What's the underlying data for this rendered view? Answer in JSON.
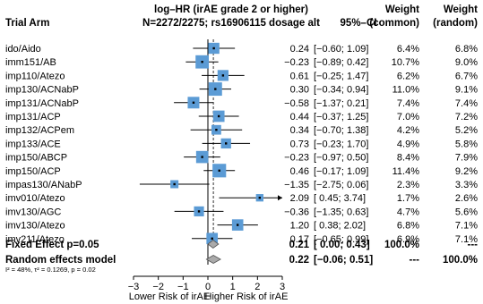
{
  "chart_data": {
    "type": "forest",
    "header": {
      "study_col": "Trial Arm",
      "effect_line1": "log–HR (irAE grade 2 or higher)",
      "effect_line2": "N=2272/2275; rs16906115 dosage alt",
      "ci_col": "95%–CI",
      "weight_common_line1": "Weight",
      "weight_common_line2": "(common)",
      "weight_random_line1": "Weight",
      "weight_random_line2": "(random)"
    },
    "studies": [
      {
        "name": "ido/Aido",
        "est": 0.24,
        "lo": -0.6,
        "hi": 1.09,
        "est_text": "0.24",
        "ci_text": "[−0.60; 1.09]",
        "w_common": "6.4%",
        "w_random": "6.8%",
        "wc": 6.4
      },
      {
        "name": "imm151/AB",
        "est": -0.23,
        "lo": -0.89,
        "hi": 0.42,
        "est_text": "−0.23",
        "ci_text": "[−0.89; 0.42]",
        "w_common": "10.7%",
        "w_random": "9.0%",
        "wc": 10.7
      },
      {
        "name": "imp110/Atezo",
        "est": 0.61,
        "lo": -0.25,
        "hi": 1.47,
        "est_text": "0.61",
        "ci_text": "[−0.25; 1.47]",
        "w_common": "6.2%",
        "w_random": "6.7%",
        "wc": 6.2
      },
      {
        "name": "imp130/ACNabP",
        "est": 0.3,
        "lo": -0.34,
        "hi": 0.94,
        "est_text": "0.30",
        "ci_text": "[−0.34; 0.94]",
        "w_common": "11.0%",
        "w_random": "9.1%",
        "wc": 11.0
      },
      {
        "name": "imp131/ACNabP",
        "est": -0.58,
        "lo": -1.37,
        "hi": 0.21,
        "est_text": "−0.58",
        "ci_text": "[−1.37; 0.21]",
        "w_common": "7.4%",
        "w_random": "7.4%",
        "wc": 7.4
      },
      {
        "name": "imp131/ACP",
        "est": 0.44,
        "lo": -0.37,
        "hi": 1.25,
        "est_text": "0.44",
        "ci_text": "[−0.37; 1.25]",
        "w_common": "7.0%",
        "w_random": "7.2%",
        "wc": 7.0
      },
      {
        "name": "imp132/ACPem",
        "est": 0.34,
        "lo": -0.7,
        "hi": 1.38,
        "est_text": "0.34",
        "ci_text": "[−0.70; 1.38]",
        "w_common": "4.2%",
        "w_random": "5.2%",
        "wc": 4.2
      },
      {
        "name": "imp133/ACE",
        "est": 0.73,
        "lo": -0.23,
        "hi": 1.7,
        "est_text": "0.73",
        "ci_text": "[−0.23; 1.70]",
        "w_common": "4.9%",
        "w_random": "5.8%",
        "wc": 4.9
      },
      {
        "name": "imp150/ABCP",
        "est": -0.23,
        "lo": -0.97,
        "hi": 0.5,
        "est_text": "−0.23",
        "ci_text": "[−0.97; 0.50]",
        "w_common": "8.4%",
        "w_random": "7.9%",
        "wc": 8.4
      },
      {
        "name": "imp150/ACP",
        "est": 0.46,
        "lo": -0.17,
        "hi": 1.09,
        "est_text": "0.46",
        "ci_text": "[−0.17; 1.09]",
        "w_common": "11.4%",
        "w_random": "9.2%",
        "wc": 11.4
      },
      {
        "name": "impas130/ANabP",
        "est": -1.35,
        "lo": -2.75,
        "hi": 0.06,
        "est_text": "−1.35",
        "ci_text": "[−2.75; 0.06]",
        "w_common": "2.3%",
        "w_random": "3.3%",
        "wc": 2.3
      },
      {
        "name": "imv010/Atezo",
        "est": 2.09,
        "lo": 0.45,
        "hi": 3.74,
        "est_text": "2.09",
        "ci_text": "[ 0.45; 3.74]",
        "w_common": "1.7%",
        "w_random": "2.6%",
        "wc": 1.7
      },
      {
        "name": "imv130/AGC",
        "est": -0.36,
        "lo": -1.35,
        "hi": 0.63,
        "est_text": "−0.36",
        "ci_text": "[−1.35; 0.63]",
        "w_common": "4.7%",
        "w_random": "5.6%",
        "wc": 4.7
      },
      {
        "name": "imv130/Atezo",
        "est": 1.2,
        "lo": 0.38,
        "hi": 2.02,
        "est_text": "1.20",
        "ci_text": "[ 0.38; 2.02]",
        "w_common": "6.8%",
        "w_random": "7.1%",
        "wc": 6.8
      },
      {
        "name": "imv211/Atezo",
        "est": 0.17,
        "lo": -0.65,
        "hi": 0.99,
        "est_text": "0.17",
        "ci_text": "[−0.65; 0.99]",
        "w_common": "6.9%",
        "w_random": "7.1%",
        "wc": 6.9
      }
    ],
    "summary": [
      {
        "name": "Fixed Effect p=0.05",
        "est": 0.21,
        "lo": 0.0,
        "hi": 0.43,
        "est_text": "0.21",
        "ci_text": "[ 0.00; 0.43]",
        "w_common": "100.0%",
        "w_random": "---"
      },
      {
        "name": "Random effects model",
        "est": 0.22,
        "lo": -0.06,
        "hi": 0.51,
        "est_text": "0.22",
        "ci_text": "[−0.06; 0.51]",
        "w_common": "---",
        "w_random": "100.0%"
      }
    ],
    "heterogeneity": "I² = 48%, τ² = 0.1269, p = 0.02",
    "xlim": [
      -3,
      3
    ],
    "xticks": [
      -3,
      -2,
      -1,
      0,
      1,
      2,
      3
    ],
    "xtick_labels": [
      "−3",
      "−2",
      "−1",
      "0",
      "1",
      "2",
      "3"
    ],
    "xlabel_left": "Lower Risk of irAE",
    "xlabel_right": "Higher Risk of irAE",
    "reference_line": 0,
    "colors": {
      "box": "#5b9bd5",
      "diamond": "#aaaaaa",
      "line": "#000000"
    }
  }
}
